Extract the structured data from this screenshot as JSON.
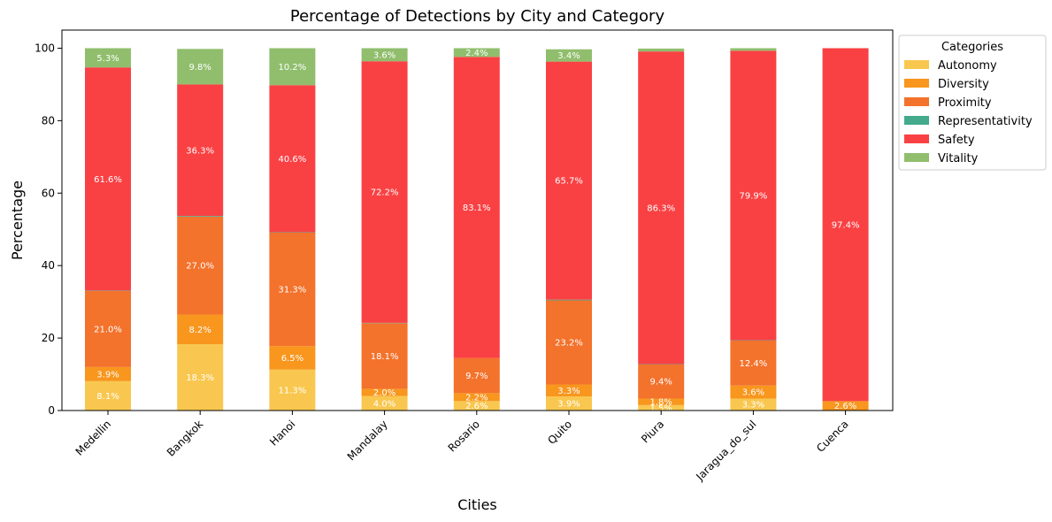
{
  "chart_data": {
    "type": "bar",
    "stacked": true,
    "title": "Percentage of Detections by City and Category",
    "xlabel": "Cities",
    "ylabel": "Percentage",
    "ylim": [
      0,
      105
    ],
    "yticks": [
      0,
      20,
      40,
      60,
      80,
      100
    ],
    "grid": false,
    "legend_title": "Categories",
    "legend_position": "outside-top-right",
    "categories": [
      "Medellin",
      "Bangkok",
      "Hanoi",
      "Mandalay",
      "Rosario",
      "Quito",
      "Piura",
      "Jaragua_do_sul",
      "Cuenca"
    ],
    "series": [
      {
        "name": "Autonomy",
        "color": "#f9c74f",
        "values": [
          8.1,
          18.3,
          11.3,
          4.0,
          2.6,
          3.9,
          1.5,
          3.3,
          0.0
        ],
        "labels": [
          "8.1%",
          "18.3%",
          "11.3%",
          "4.0%",
          "2.6%",
          "3.9%",
          "1.5%",
          "3.3%",
          ""
        ]
      },
      {
        "name": "Diversity",
        "color": "#f8961e",
        "values": [
          3.9,
          8.2,
          6.5,
          2.0,
          2.2,
          3.3,
          1.8,
          3.6,
          2.6
        ],
        "labels": [
          "3.9%",
          "8.2%",
          "6.5%",
          "2.0%",
          "2.2%",
          "3.3%",
          "1.8%",
          "3.6%",
          "2.6%"
        ]
      },
      {
        "name": "Proximity",
        "color": "#f3722c",
        "values": [
          21.0,
          27.0,
          31.3,
          18.1,
          9.7,
          23.2,
          9.4,
          12.4,
          0.0
        ],
        "labels": [
          "21.0%",
          "27.0%",
          "31.3%",
          "18.1%",
          "9.7%",
          "23.2%",
          "9.4%",
          "12.4%",
          ""
        ]
      },
      {
        "name": "Representativity",
        "color": "#43aa8b",
        "values": [
          0.1,
          0.2,
          0.1,
          0.1,
          0.0,
          0.2,
          0.1,
          0.1,
          0.0
        ],
        "labels": [
          "",
          "",
          "",
          "",
          "",
          "",
          "",
          "",
          ""
        ]
      },
      {
        "name": "Safety",
        "color": "#f94144",
        "values": [
          61.6,
          36.3,
          40.6,
          72.2,
          83.1,
          65.7,
          86.3,
          79.9,
          97.4
        ],
        "labels": [
          "61.6%",
          "36.3%",
          "40.6%",
          "72.2%",
          "83.1%",
          "65.7%",
          "86.3%",
          "79.9%",
          "97.4%"
        ]
      },
      {
        "name": "Vitality",
        "color": "#90be6d",
        "values": [
          5.3,
          9.8,
          10.2,
          3.6,
          2.4,
          3.4,
          0.8,
          0.7,
          0.0
        ],
        "labels": [
          "5.3%",
          "9.8%",
          "10.2%",
          "3.6%",
          "2.4%",
          "3.4%",
          "",
          "",
          ""
        ]
      }
    ]
  }
}
